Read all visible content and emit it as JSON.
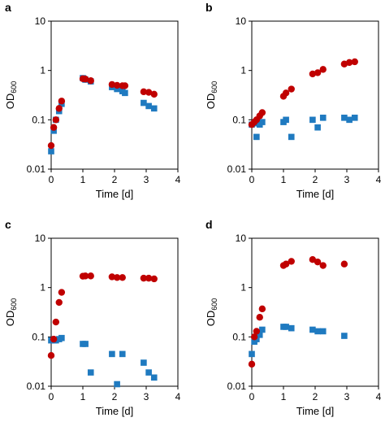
{
  "colors": {
    "series_red": "#c00000",
    "series_blue": "#1f7ac0",
    "axis": "#000000"
  },
  "chart_data": [
    {
      "panel_label": "a",
      "type": "scatter",
      "xlabel": "Time [d]",
      "ylabel": "OD600",
      "ylabel_main": "OD",
      "ylabel_sub": "600",
      "x_ticks": [
        "0",
        "1",
        "2",
        "3",
        "4"
      ],
      "y_ticks": [
        "0.01",
        "0.1",
        "1",
        "10"
      ],
      "xlim": [
        0,
        4
      ],
      "ylim": [
        0.01,
        10
      ],
      "y_scale": "log",
      "grid": false,
      "series": [
        {
          "color": "#c00000",
          "marker": "circle",
          "x": [
            0.0,
            0.08,
            0.15,
            0.25,
            0.33,
            1.0,
            1.08,
            1.25,
            1.92,
            2.08,
            2.25,
            2.33,
            2.92,
            3.08,
            3.25
          ],
          "y": [
            0.03,
            0.07,
            0.1,
            0.17,
            0.24,
            0.68,
            0.67,
            0.62,
            0.52,
            0.5,
            0.49,
            0.49,
            0.37,
            0.36,
            0.33
          ]
        },
        {
          "color": "#1f7ac0",
          "marker": "square",
          "x": [
            0.0,
            0.08,
            0.15,
            0.25,
            0.33,
            1.0,
            1.08,
            1.25,
            1.92,
            2.08,
            2.25,
            2.33,
            2.92,
            3.08,
            3.25
          ],
          "y": [
            0.023,
            0.06,
            0.1,
            0.15,
            0.21,
            0.7,
            0.65,
            0.6,
            0.46,
            0.42,
            0.38,
            0.35,
            0.22,
            0.19,
            0.17
          ]
        }
      ]
    },
    {
      "panel_label": "b",
      "type": "scatter",
      "xlabel": "Time [d]",
      "ylabel": "OD600",
      "ylabel_main": "OD",
      "ylabel_sub": "600",
      "x_ticks": [
        "0",
        "1",
        "2",
        "3",
        "4"
      ],
      "y_ticks": [
        "0.01",
        "0.1",
        "1",
        "10"
      ],
      "xlim": [
        0,
        4
      ],
      "ylim": [
        0.01,
        10
      ],
      "y_scale": "log",
      "grid": false,
      "series": [
        {
          "color": "#c00000",
          "marker": "circle",
          "x": [
            0.0,
            0.08,
            0.15,
            0.25,
            0.33,
            1.0,
            1.08,
            1.25,
            1.92,
            2.08,
            2.25,
            2.92,
            3.08,
            3.25
          ],
          "y": [
            0.08,
            0.09,
            0.1,
            0.12,
            0.14,
            0.3,
            0.35,
            0.42,
            0.85,
            0.9,
            1.05,
            1.35,
            1.45,
            1.5
          ]
        },
        {
          "color": "#1f7ac0",
          "marker": "square",
          "x": [
            0.0,
            0.08,
            0.15,
            0.25,
            0.33,
            1.0,
            1.08,
            1.25,
            1.92,
            2.08,
            2.25,
            2.92,
            3.08,
            3.25
          ],
          "y": [
            0.08,
            0.085,
            0.045,
            0.08,
            0.09,
            0.09,
            0.1,
            0.045,
            0.1,
            0.07,
            0.11,
            0.11,
            0.1,
            0.11
          ]
        }
      ]
    },
    {
      "panel_label": "c",
      "type": "scatter",
      "xlabel": "Time [d]",
      "ylabel": "OD600",
      "ylabel_main": "OD",
      "ylabel_sub": "600",
      "x_ticks": [
        "0",
        "1",
        "2",
        "3",
        "4"
      ],
      "y_ticks": [
        "0.01",
        "0.1",
        "1",
        "10"
      ],
      "xlim": [
        0,
        4
      ],
      "ylim": [
        0.01,
        10
      ],
      "y_scale": "log",
      "grid": false,
      "series": [
        {
          "color": "#c00000",
          "marker": "circle",
          "x": [
            0.0,
            0.08,
            0.15,
            0.25,
            0.33,
            1.0,
            1.08,
            1.25,
            1.92,
            2.08,
            2.25,
            2.92,
            3.08,
            3.25
          ],
          "y": [
            0.042,
            0.09,
            0.2,
            0.5,
            0.8,
            1.7,
            1.72,
            1.72,
            1.65,
            1.6,
            1.6,
            1.55,
            1.55,
            1.5
          ]
        },
        {
          "color": "#1f7ac0",
          "marker": "square",
          "x": [
            0.0,
            0.08,
            0.15,
            0.25,
            0.33,
            1.0,
            1.08,
            1.25,
            1.92,
            2.08,
            2.25,
            2.92,
            3.08,
            3.25
          ],
          "y": [
            0.085,
            0.085,
            0.085,
            0.09,
            0.095,
            0.072,
            0.072,
            0.019,
            0.045,
            0.011,
            0.045,
            0.03,
            0.019,
            0.015
          ]
        }
      ]
    },
    {
      "panel_label": "d",
      "type": "scatter",
      "xlabel": "Time [d]",
      "ylabel": "OD600",
      "ylabel_main": "OD",
      "ylabel_sub": "600",
      "x_ticks": [
        "0",
        "1",
        "2",
        "3",
        "4"
      ],
      "y_ticks": [
        "0.01",
        "0.1",
        "1",
        "10"
      ],
      "xlim": [
        0,
        4
      ],
      "ylim": [
        0.01,
        10
      ],
      "y_scale": "log",
      "grid": false,
      "series": [
        {
          "color": "#c00000",
          "marker": "circle",
          "x": [
            0.0,
            0.08,
            0.15,
            0.25,
            0.33,
            1.0,
            1.08,
            1.25,
            1.92,
            2.08,
            2.25,
            2.92
          ],
          "y": [
            0.028,
            0.1,
            0.13,
            0.25,
            0.37,
            2.8,
            3.0,
            3.4,
            3.7,
            3.3,
            2.8,
            3.0
          ]
        },
        {
          "color": "#1f7ac0",
          "marker": "square",
          "x": [
            0.0,
            0.08,
            0.15,
            0.25,
            0.33,
            1.0,
            1.08,
            1.25,
            1.92,
            2.08,
            2.25,
            2.92
          ],
          "y": [
            0.045,
            0.08,
            0.09,
            0.11,
            0.14,
            0.16,
            0.16,
            0.15,
            0.14,
            0.13,
            0.13,
            0.105
          ]
        }
      ]
    }
  ]
}
